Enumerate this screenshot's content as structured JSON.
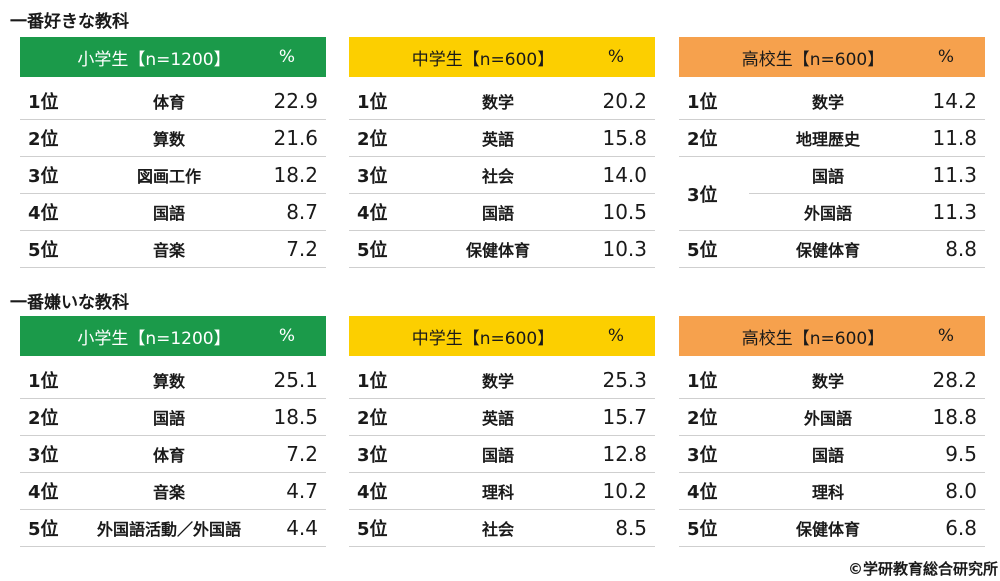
{
  "colors": {
    "elementary": "#1b9a4a",
    "junior_high": "#fccf00",
    "high": "#f6a14d"
  },
  "sections": [
    {
      "title": "一番好きな教科",
      "tables": [
        {
          "group": "elementary",
          "header": "小学生【n=1200】",
          "unit": "%",
          "rows": [
            {
              "rank": "1位",
              "subject": "体育",
              "value": "22.9"
            },
            {
              "rank": "2位",
              "subject": "算数",
              "value": "21.6"
            },
            {
              "rank": "3位",
              "subject": "図画工作",
              "value": "18.2"
            },
            {
              "rank": "4位",
              "subject": "国語",
              "value": "8.7"
            },
            {
              "rank": "5位",
              "subject": "音楽",
              "value": "7.2"
            }
          ]
        },
        {
          "group": "junior_high",
          "header": "中学生【n=600】",
          "unit": "%",
          "rows": [
            {
              "rank": "1位",
              "subject": "数学",
              "value": "20.2"
            },
            {
              "rank": "2位",
              "subject": "英語",
              "value": "15.8"
            },
            {
              "rank": "3位",
              "subject": "社会",
              "value": "14.0"
            },
            {
              "rank": "4位",
              "subject": "国語",
              "value": "10.5"
            },
            {
              "rank": "5位",
              "subject": "保健体育",
              "value": "10.3"
            }
          ]
        },
        {
          "group": "high",
          "header": "高校生【n=600】",
          "unit": "%",
          "rows": [
            {
              "rank": "1位",
              "subject": "数学",
              "value": "14.2"
            },
            {
              "rank": "2位",
              "subject": "地理歴史",
              "value": "11.8"
            },
            {
              "rank": "3位",
              "subject": "国語",
              "value": "11.3"
            },
            {
              "rank": "3位",
              "subject": "外国語",
              "value": "11.3"
            },
            {
              "rank": "5位",
              "subject": "保健体育",
              "value": "8.8"
            }
          ]
        }
      ]
    },
    {
      "title": "一番嫌いな教科",
      "tables": [
        {
          "group": "elementary",
          "header": "小学生【n=1200】",
          "unit": "%",
          "rows": [
            {
              "rank": "1位",
              "subject": "算数",
              "value": "25.1"
            },
            {
              "rank": "2位",
              "subject": "国語",
              "value": "18.5"
            },
            {
              "rank": "3位",
              "subject": "体育",
              "value": "7.2"
            },
            {
              "rank": "4位",
              "subject": "音楽",
              "value": "4.7"
            },
            {
              "rank": "5位",
              "subject": "外国語活動／外国語",
              "value": "4.4"
            }
          ]
        },
        {
          "group": "junior_high",
          "header": "中学生【n=600】",
          "unit": "%",
          "rows": [
            {
              "rank": "1位",
              "subject": "数学",
              "value": "25.3"
            },
            {
              "rank": "2位",
              "subject": "英語",
              "value": "15.7"
            },
            {
              "rank": "3位",
              "subject": "国語",
              "value": "12.8"
            },
            {
              "rank": "4位",
              "subject": "理科",
              "value": "10.2"
            },
            {
              "rank": "5位",
              "subject": "社会",
              "value": "8.5"
            }
          ]
        },
        {
          "group": "high",
          "header": "高校生【n=600】",
          "unit": "%",
          "rows": [
            {
              "rank": "1位",
              "subject": "数学",
              "value": "28.2"
            },
            {
              "rank": "2位",
              "subject": "外国語",
              "value": "18.8"
            },
            {
              "rank": "3位",
              "subject": "国語",
              "value": "9.5"
            },
            {
              "rank": "4位",
              "subject": "理科",
              "value": "8.0"
            },
            {
              "rank": "5位",
              "subject": "保健体育",
              "value": "6.8"
            }
          ]
        }
      ]
    }
  ],
  "credit": "©学研教育総合研究所"
}
